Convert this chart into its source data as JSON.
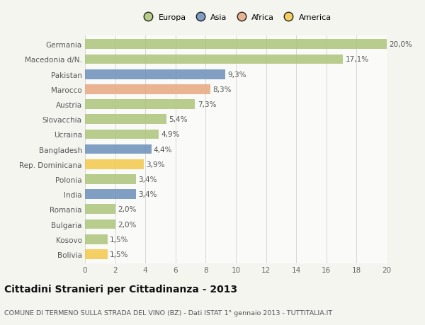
{
  "categories": [
    "Germania",
    "Macedonia d/N.",
    "Pakistan",
    "Marocco",
    "Austria",
    "Slovacchia",
    "Ucraina",
    "Bangladesh",
    "Rep. Dominicana",
    "Polonia",
    "India",
    "Romania",
    "Bulgaria",
    "Kosovo",
    "Bolivia"
  ],
  "values": [
    20.0,
    17.1,
    9.3,
    8.3,
    7.3,
    5.4,
    4.9,
    4.4,
    3.9,
    3.4,
    3.4,
    2.0,
    2.0,
    1.5,
    1.5
  ],
  "labels": [
    "20,0%",
    "17,1%",
    "9,3%",
    "8,3%",
    "7,3%",
    "5,4%",
    "4,9%",
    "4,4%",
    "3,9%",
    "3,4%",
    "3,4%",
    "2,0%",
    "2,0%",
    "1,5%",
    "1,5%"
  ],
  "colors": [
    "#adc57a",
    "#adc57a",
    "#6b8fba",
    "#e8a882",
    "#adc57a",
    "#adc57a",
    "#adc57a",
    "#6b8fba",
    "#f2c84a",
    "#adc57a",
    "#6b8fba",
    "#adc57a",
    "#adc57a",
    "#adc57a",
    "#f2c84a"
  ],
  "continent_labels": [
    "Europa",
    "Asia",
    "Africa",
    "America"
  ],
  "continent_colors": [
    "#adc57a",
    "#6b8fba",
    "#e8a882",
    "#f2c84a"
  ],
  "title": "Cittadini Stranieri per Cittadinanza - 2013",
  "subtitle": "COMUNE DI TERMENO SULLA STRADA DEL VINO (BZ) - Dati ISTAT 1° gennaio 2013 - TUTTITALIA.IT",
  "xlim": [
    0,
    20
  ],
  "xticks": [
    0,
    2,
    4,
    6,
    8,
    10,
    12,
    14,
    16,
    18,
    20
  ],
  "bg_color": "#f5f5f0",
  "bar_bg_color": "#fafaf8",
  "grid_color": "#d8d8d8",
  "label_fontsize": 7.5,
  "tick_fontsize": 7.5,
  "title_fontsize": 10,
  "subtitle_fontsize": 6.8,
  "bar_height": 0.65
}
